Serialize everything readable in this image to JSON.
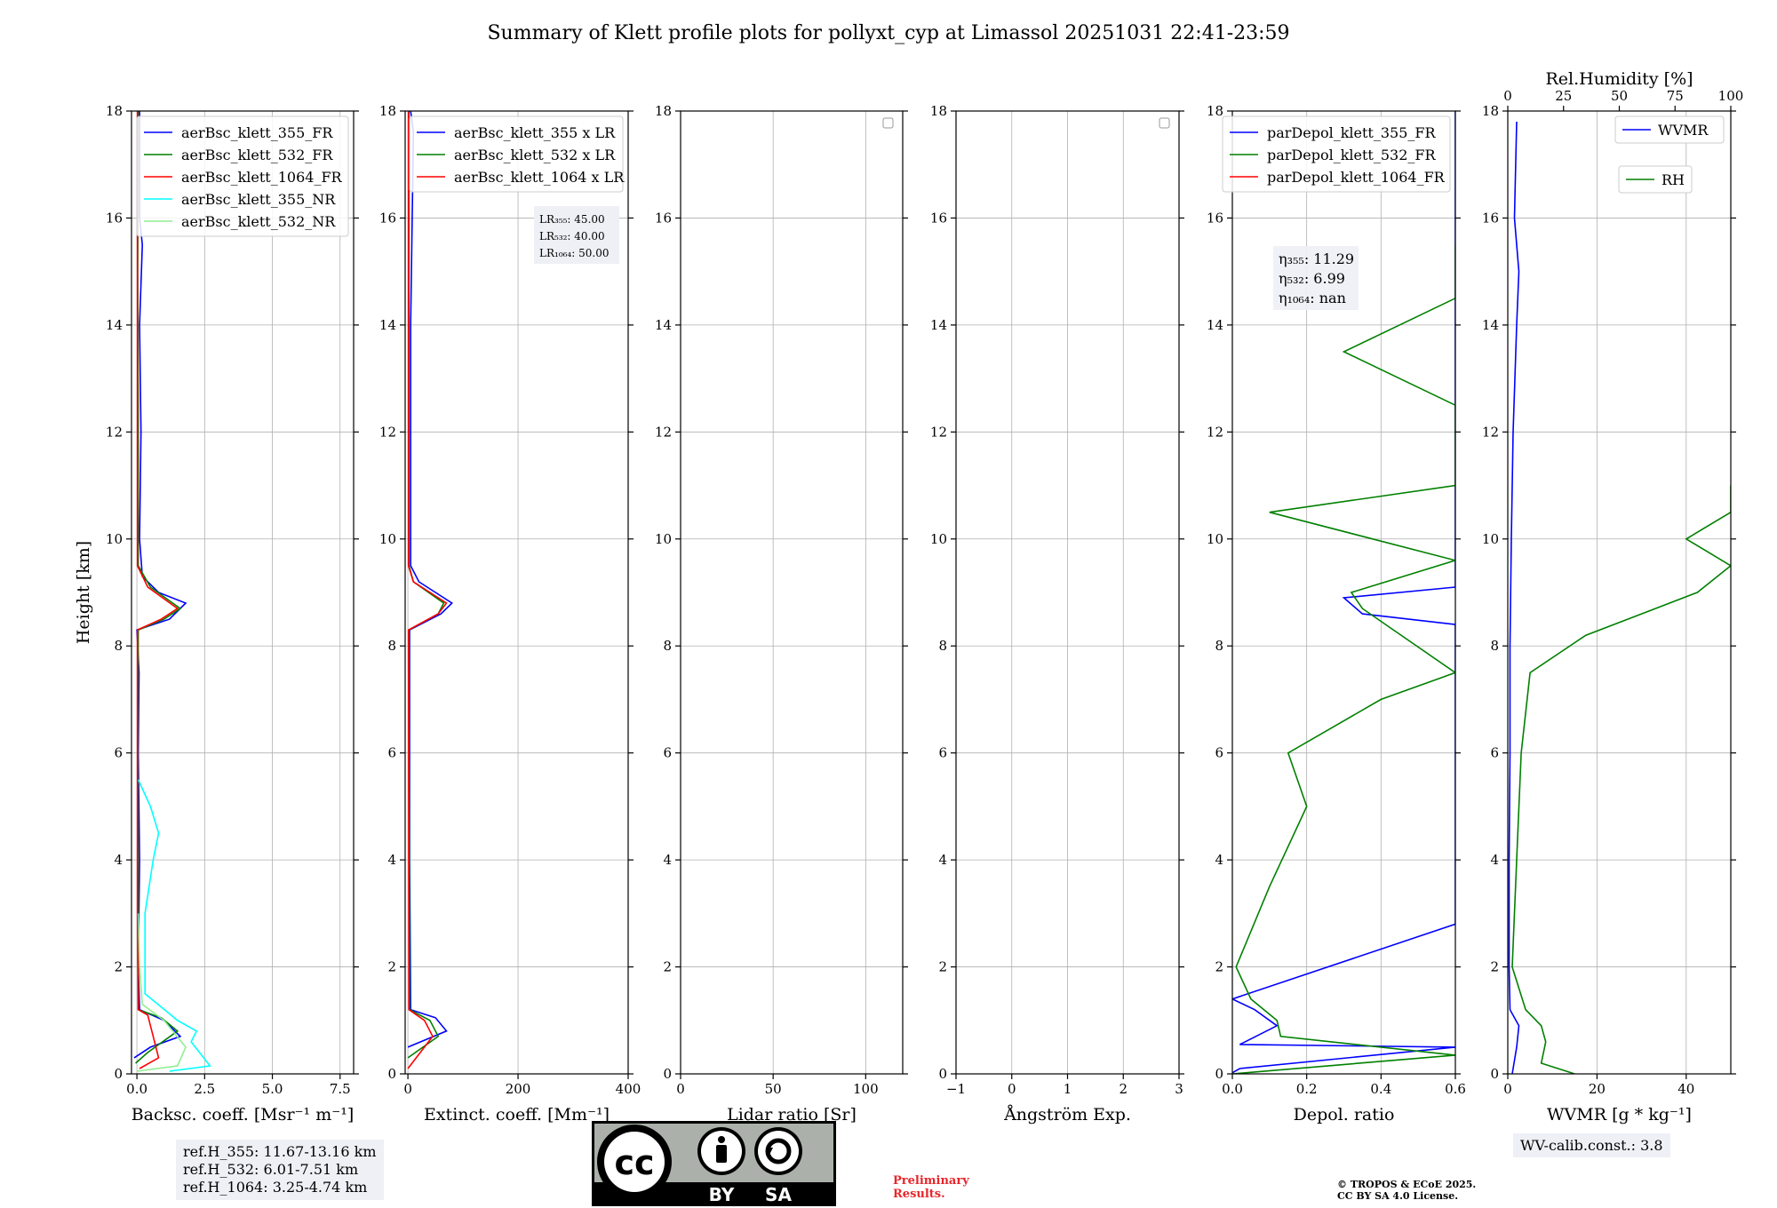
{
  "title": "Summary of Klett profile plots for pollyxt_cyp at Limassol 20251031 22:41-23:59",
  "colors": {
    "blue": "#0000ff",
    "green": "#008000",
    "red": "#ff0000",
    "cyan": "#00ffff",
    "lightgreen": "#90ee90",
    "grid": "#b0b0b0"
  },
  "chart_data": [
    {
      "type": "line",
      "id": "backscatter",
      "xlabel": "Backsc. coeff. [Msr⁻¹ m⁻¹]",
      "ylabel": "Height [km]",
      "xlim": [
        -0.2,
        8
      ],
      "ylim": [
        0,
        18
      ],
      "xticks": [
        0,
        2.5,
        5,
        7.5
      ],
      "xtick_labels": [
        "0.0",
        "2.5",
        "5.0",
        "7.5"
      ],
      "yticks": [
        0,
        2,
        4,
        6,
        8,
        10,
        12,
        14,
        16,
        18
      ],
      "legend": [
        "aerBsc_klett_355_FR",
        "aerBsc_klett_532_FR",
        "aerBsc_klett_1064_FR",
        "aerBsc_klett_355_NR",
        "aerBsc_klett_532_NR"
      ],
      "legend_position": "top-right",
      "series": [
        {
          "name": "aerBsc_klett_355_FR",
          "color": "blue",
          "points": [
            [
              -0.1,
              0.3
            ],
            [
              0.5,
              0.5
            ],
            [
              1.6,
              0.7
            ],
            [
              1.0,
              1.0
            ],
            [
              0.1,
              1.2
            ],
            [
              0.05,
              2
            ],
            [
              0.1,
              4
            ],
            [
              0.05,
              6
            ],
            [
              0.08,
              7.5
            ],
            [
              0.0,
              8.3
            ],
            [
              1.2,
              8.5
            ],
            [
              1.8,
              8.8
            ],
            [
              0.8,
              9.0
            ],
            [
              0.2,
              9.3
            ],
            [
              0.1,
              10
            ],
            [
              0.15,
              12
            ],
            [
              0.1,
              14
            ],
            [
              0.2,
              15.5
            ],
            [
              0.1,
              16
            ],
            [
              0.1,
              18
            ]
          ]
        },
        {
          "name": "aerBsc_klett_532_FR",
          "color": "green",
          "points": [
            [
              -0.05,
              0.2
            ],
            [
              0.4,
              0.4
            ],
            [
              1.5,
              0.8
            ],
            [
              0.9,
              1.05
            ],
            [
              0.05,
              1.2
            ],
            [
              0.05,
              3
            ],
            [
              0.03,
              6
            ],
            [
              0.05,
              8.3
            ],
            [
              1.0,
              8.5
            ],
            [
              1.6,
              8.7
            ],
            [
              0.5,
              9.1
            ],
            [
              0.05,
              9.5
            ],
            [
              0.05,
              12
            ],
            [
              0.03,
              15
            ],
            [
              0.05,
              18
            ]
          ]
        },
        {
          "name": "aerBsc_klett_1064_FR",
          "color": "red",
          "points": [
            [
              0.1,
              0.1
            ],
            [
              0.8,
              0.3
            ],
            [
              0.6,
              0.7
            ],
            [
              0.4,
              1.1
            ],
            [
              0.05,
              1.2
            ],
            [
              0.02,
              3
            ],
            [
              0.02,
              6
            ],
            [
              0.02,
              8.3
            ],
            [
              0.9,
              8.5
            ],
            [
              1.5,
              8.7
            ],
            [
              0.4,
              9.1
            ],
            [
              0.02,
              9.5
            ],
            [
              0.02,
              12
            ],
            [
              0.02,
              18
            ]
          ]
        },
        {
          "name": "aerBsc_klett_355_NR",
          "color": "cyan",
          "points": [
            [
              1.2,
              0.05
            ],
            [
              2.7,
              0.15
            ],
            [
              2.0,
              0.6
            ],
            [
              2.2,
              0.8
            ],
            [
              1.5,
              1.0
            ],
            [
              0.3,
              1.5
            ],
            [
              0.3,
              3
            ],
            [
              0.6,
              4
            ],
            [
              0.8,
              4.5
            ],
            [
              0.5,
              5
            ],
            [
              0.05,
              5.5
            ]
          ]
        },
        {
          "name": "aerBsc_klett_532_NR",
          "color": "lightgreen",
          "points": [
            [
              0.0,
              0.05
            ],
            [
              1.5,
              0.15
            ],
            [
              1.8,
              0.5
            ],
            [
              1.0,
              1.0
            ],
            [
              0.2,
              1.3
            ],
            [
              0.1,
              2
            ],
            [
              0.05,
              3
            ]
          ]
        }
      ],
      "annotation": {
        "lines": [
          "ref.H_355: 11.67-13.16 km",
          "ref.H_532: 6.01-7.51 km",
          "ref.H_1064: 3.25-4.74 km"
        ]
      }
    },
    {
      "type": "line",
      "id": "extinction",
      "xlabel": "Extinct. coeff. [Mm⁻¹]",
      "xlim": [
        -5,
        400
      ],
      "ylim": [
        0,
        18
      ],
      "xticks": [
        0,
        200,
        400
      ],
      "xtick_labels": [
        "0",
        "200",
        "400"
      ],
      "yticks": [
        0,
        2,
        4,
        6,
        8,
        10,
        12,
        14,
        16,
        18
      ],
      "legend": [
        "aerBsc_klett_355 x LR",
        "aerBsc_klett_532 x LR",
        "aerBsc_klett_1064 x LR"
      ],
      "legend_position": "top-right",
      "series": [
        {
          "name": "aerBsc_klett_355 x LR",
          "color": "blue",
          "points": [
            [
              0,
              0.5
            ],
            [
              70,
              0.8
            ],
            [
              50,
              1.05
            ],
            [
              5,
              1.2
            ],
            [
              3,
              4
            ],
            [
              3,
              8.3
            ],
            [
              60,
              8.6
            ],
            [
              80,
              8.8
            ],
            [
              20,
              9.2
            ],
            [
              5,
              9.5
            ],
            [
              5,
              14
            ],
            [
              10,
              17.6
            ],
            [
              5,
              18
            ]
          ]
        },
        {
          "name": "aerBsc_klett_532 x LR",
          "color": "green",
          "points": [
            [
              0,
              0.3
            ],
            [
              55,
              0.7
            ],
            [
              40,
              1.0
            ],
            [
              3,
              1.2
            ],
            [
              2,
              6
            ],
            [
              2,
              8.3
            ],
            [
              55,
              8.6
            ],
            [
              65,
              8.8
            ],
            [
              10,
              9.2
            ],
            [
              2,
              9.5
            ],
            [
              2,
              18
            ]
          ]
        },
        {
          "name": "aerBsc_klett_1064 x LR",
          "color": "red",
          "points": [
            [
              0,
              0.1
            ],
            [
              45,
              0.7
            ],
            [
              30,
              1.0
            ],
            [
              2,
              1.2
            ],
            [
              1,
              8.3
            ],
            [
              55,
              8.6
            ],
            [
              70,
              8.8
            ],
            [
              10,
              9.2
            ],
            [
              1,
              9.5
            ],
            [
              1,
              18
            ]
          ]
        }
      ],
      "annotation": {
        "lines": [
          "LR₃₅₅: 45.00",
          "LR₅₃₂: 40.00",
          "LR₁₀₆₄: 50.00"
        ]
      }
    },
    {
      "type": "line",
      "id": "lidar_ratio",
      "xlabel": "Lidar ratio [Sr]",
      "xlim": [
        0,
        120
      ],
      "ylim": [
        0,
        18
      ],
      "xticks": [
        0,
        50,
        100
      ],
      "xtick_labels": [
        "0",
        "50",
        "100"
      ],
      "yticks": [
        0,
        2,
        4,
        6,
        8,
        10,
        12,
        14,
        16,
        18
      ],
      "series": []
    },
    {
      "type": "line",
      "id": "angstrom",
      "xlabel": "Ångström Exp.",
      "xlim": [
        -1,
        3
      ],
      "ylim": [
        0,
        18
      ],
      "xticks": [
        -1,
        0,
        1,
        2,
        3
      ],
      "xtick_labels": [
        "−1",
        "0",
        "1",
        "2",
        "3"
      ],
      "yticks": [
        0,
        2,
        4,
        6,
        8,
        10,
        12,
        14,
        16,
        18
      ],
      "series": []
    },
    {
      "type": "line",
      "id": "depol",
      "xlabel": "Depol. ratio",
      "xlim": [
        0,
        0.6
      ],
      "ylim": [
        0,
        18
      ],
      "xticks": [
        0,
        0.2,
        0.4,
        0.6
      ],
      "xtick_labels": [
        "0.0",
        "0.2",
        "0.4",
        "0.6"
      ],
      "yticks": [
        0,
        2,
        4,
        6,
        8,
        10,
        12,
        14,
        16,
        18
      ],
      "legend": [
        "parDepol_klett_355_FR",
        "parDepol_klett_532_FR",
        "parDepol_klett_1064_FR"
      ],
      "legend_position": "top-right",
      "series": [
        {
          "name": "parDepol_klett_355_FR",
          "color": "blue",
          "profile": [
            [
              0.0,
              0.02
            ],
            [
              0.02,
              0.1
            ],
            [
              0.6,
              0.5
            ],
            [
              0.02,
              0.55
            ],
            [
              0.12,
              0.9
            ],
            [
              0.06,
              1.2
            ],
            [
              0.0,
              1.4
            ],
            [
              0.6,
              2.8
            ],
            [
              0.6,
              3.3
            ],
            [
              0.6,
              3.6
            ],
            [
              0.6,
              4.0
            ],
            [
              0.6,
              4.5
            ],
            [
              0.6,
              5.0
            ],
            [
              0.6,
              5.5
            ],
            [
              0.6,
              6.0
            ],
            [
              0.6,
              6.5
            ],
            [
              0.6,
              7.0
            ],
            [
              0.6,
              7.5
            ],
            [
              0.6,
              8.0
            ],
            [
              0.6,
              8.4
            ],
            [
              0.35,
              8.6
            ],
            [
              0.3,
              8.9
            ],
            [
              0.6,
              9.1
            ],
            [
              0.6,
              9.5
            ],
            [
              0.6,
              10.0
            ],
            [
              0.6,
              11.0
            ],
            [
              0.6,
              12.0
            ],
            [
              0.6,
              13.0
            ],
            [
              0.6,
              14.0
            ],
            [
              0.6,
              15.0
            ],
            [
              0.6,
              16.0
            ],
            [
              0.6,
              17.5
            ],
            [
              0.6,
              18.0
            ]
          ]
        },
        {
          "name": "parDepol_klett_532_FR",
          "color": "green",
          "profile": [
            [
              0.0,
              0.0
            ],
            [
              0.6,
              0.35
            ],
            [
              0.13,
              0.7
            ],
            [
              0.12,
              1.0
            ],
            [
              0.05,
              1.4
            ],
            [
              0.01,
              2.0
            ],
            [
              0.1,
              3.5
            ],
            [
              0.2,
              5.0
            ],
            [
              0.15,
              6.0
            ],
            [
              0.4,
              7.0
            ],
            [
              0.6,
              7.5
            ],
            [
              0.35,
              8.7
            ],
            [
              0.32,
              9.0
            ],
            [
              0.6,
              9.6
            ],
            [
              0.1,
              10.5
            ],
            [
              0.6,
              11.0
            ],
            [
              0.6,
              12.5
            ],
            [
              0.3,
              13.5
            ],
            [
              0.6,
              14.5
            ],
            [
              0.6,
              15.0
            ],
            [
              0.6,
              15.5
            ]
          ]
        },
        {
          "name": "parDepol_klett_1064_FR",
          "color": "red",
          "profile": []
        }
      ],
      "annotation": {
        "lines": [
          "η₃₅₅: 11.29",
          "η₅₃₂: 6.99",
          "η₁₀₆₄: nan"
        ]
      }
    },
    {
      "type": "line",
      "id": "wvmr",
      "xlabel": "WVMR [g * kg⁻¹]",
      "xlim": [
        0,
        50
      ],
      "ylim": [
        0,
        18
      ],
      "xticks": [
        0,
        20,
        40
      ],
      "xtick_labels": [
        "0",
        "20",
        "40"
      ],
      "yticks": [
        0,
        2,
        4,
        6,
        8,
        10,
        12,
        14,
        16,
        18
      ],
      "top_axis": {
        "label": "Rel.Humidity [%]",
        "lim": [
          0,
          100
        ],
        "ticks": [
          0,
          25,
          50,
          75,
          100
        ],
        "tick_labels": [
          "0",
          "25",
          "50",
          "75",
          "100"
        ]
      },
      "legend": [
        "WVMR",
        "RH"
      ],
      "series": [
        {
          "name": "WVMR",
          "color": "blue",
          "points": [
            [
              1,
              0.0
            ],
            [
              2,
              0.5
            ],
            [
              2.5,
              0.9
            ],
            [
              0.5,
              1.2
            ],
            [
              0.3,
              2
            ],
            [
              0.3,
              4
            ],
            [
              0.5,
              6
            ],
            [
              0.5,
              8
            ],
            [
              0.8,
              10
            ],
            [
              1.2,
              12
            ],
            [
              2,
              14
            ],
            [
              2.5,
              15
            ],
            [
              1.5,
              16
            ],
            [
              2,
              17.8
            ]
          ]
        },
        {
          "name": "RH",
          "color": "green",
          "axis": "top",
          "points": [
            [
              30,
              0.0
            ],
            [
              15,
              0.2
            ],
            [
              17,
              0.6
            ],
            [
              15,
              0.9
            ],
            [
              8,
              1.2
            ],
            [
              2,
              2
            ],
            [
              4,
              4
            ],
            [
              6,
              6
            ],
            [
              10,
              7.5
            ],
            [
              35,
              8.2
            ],
            [
              60,
              8.6
            ],
            [
              85,
              9.0
            ],
            [
              100,
              9.5
            ],
            [
              80,
              10
            ],
            [
              100,
              10.5
            ],
            [
              100,
              11
            ]
          ]
        }
      ],
      "annotation": {
        "lines": [
          "WV-calib.const.: 3.8"
        ]
      }
    }
  ],
  "footer": {
    "license_badge": {
      "by": "BY",
      "sa": "SA",
      "cc": "cc"
    },
    "preliminary": [
      "Preliminary",
      "Results."
    ],
    "copyright": [
      "© TROPOS & ECoE 2025.",
      "CC BY SA 4.0 License."
    ]
  }
}
